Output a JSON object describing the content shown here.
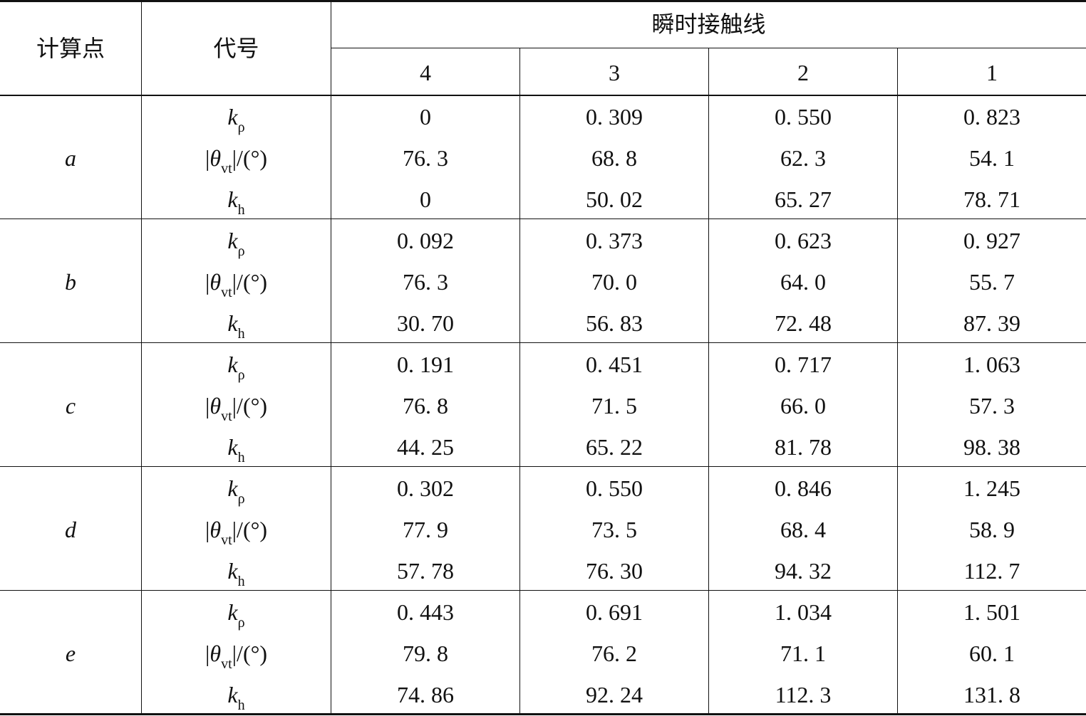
{
  "table": {
    "headers": {
      "point": "计算点",
      "code": "代号",
      "group": "瞬时接触线",
      "lines": [
        "4",
        "3",
        "2",
        "1"
      ]
    },
    "symbols": {
      "k_rho": {
        "main": "k",
        "sub": "ρ"
      },
      "theta": {
        "pre": "|",
        "main": "θ",
        "sub": "vt",
        "post": "|/(°)"
      },
      "k_h": {
        "main": "k",
        "sub": "h"
      }
    },
    "groups": [
      {
        "point": "a",
        "rows": [
          [
            "0",
            "0. 309",
            "0. 550",
            "0. 823"
          ],
          [
            "76. 3",
            "68. 8",
            "62. 3",
            "54. 1"
          ],
          [
            "0",
            "50. 02",
            "65. 27",
            "78. 71"
          ]
        ]
      },
      {
        "point": "b",
        "rows": [
          [
            "0. 092",
            "0. 373",
            "0. 623",
            "0. 927"
          ],
          [
            "76. 3",
            "70. 0",
            "64. 0",
            "55. 7"
          ],
          [
            "30. 70",
            "56. 83",
            "72. 48",
            "87. 39"
          ]
        ]
      },
      {
        "point": "c",
        "rows": [
          [
            "0. 191",
            "0. 451",
            "0. 717",
            "1. 063"
          ],
          [
            "76. 8",
            "71. 5",
            "66. 0",
            "57. 3"
          ],
          [
            "44. 25",
            "65. 22",
            "81. 78",
            "98. 38"
          ]
        ]
      },
      {
        "point": "d",
        "rows": [
          [
            "0. 302",
            "0. 550",
            "0. 846",
            "1. 245"
          ],
          [
            "77. 9",
            "73. 5",
            "68. 4",
            "58. 9"
          ],
          [
            "57. 78",
            "76. 30",
            "94. 32",
            "112. 7"
          ]
        ]
      },
      {
        "point": "e",
        "rows": [
          [
            "0. 443",
            "0. 691",
            "1. 034",
            "1. 501"
          ],
          [
            "79. 8",
            "76. 2",
            "71. 1",
            "60. 1"
          ],
          [
            "74. 86",
            "92. 24",
            "112. 3",
            "131. 8"
          ]
        ]
      }
    ]
  }
}
